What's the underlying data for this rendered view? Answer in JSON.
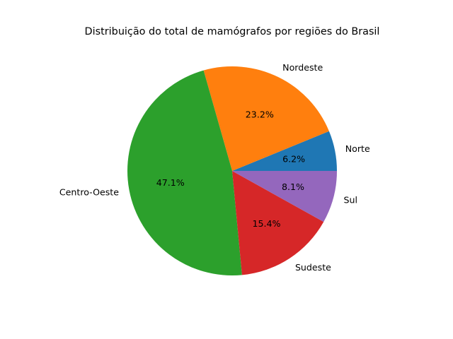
{
  "chart_data": {
    "type": "pie",
    "title": "Distribuição do total de mamógrafos por regiões do Brasil",
    "categories": [
      "Norte",
      "Nordeste",
      "Centro-Oeste",
      "Sudeste",
      "Sul"
    ],
    "values": [
      6.2,
      23.2,
      47.1,
      15.4,
      8.1
    ],
    "percent_labels": [
      "6.2%",
      "23.2%",
      "47.1%",
      "15.4%",
      "8.1%"
    ],
    "colors": [
      "#1f77b4",
      "#ff7f0e",
      "#2ca02c",
      "#d62728",
      "#9467bd"
    ],
    "start_angle_deg": 0,
    "direction": "counterclockwise",
    "legend": "none"
  }
}
